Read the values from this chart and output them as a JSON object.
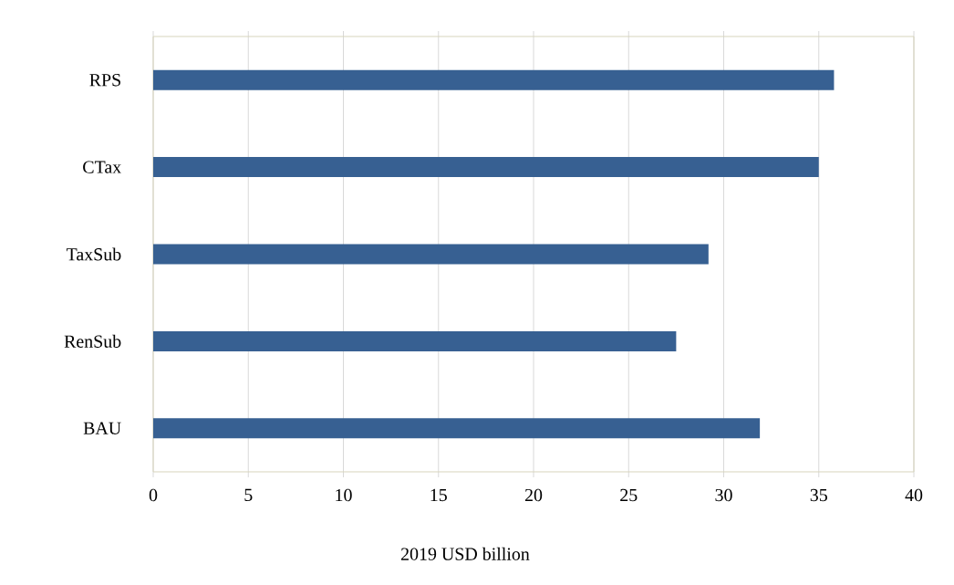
{
  "chart_data": {
    "type": "bar",
    "orientation": "horizontal",
    "xlabel": "2019 USD billion",
    "categories": [
      "RPS",
      "CTax",
      "TaxSub",
      "RenSub",
      "BAU"
    ],
    "values": [
      35.8,
      35.0,
      29.2,
      27.5,
      31.9
    ],
    "color": "#376092",
    "xlim": [
      0,
      40
    ],
    "xticks": [
      0,
      5,
      10,
      15,
      20,
      25,
      30,
      35,
      40
    ],
    "grid": "x"
  }
}
